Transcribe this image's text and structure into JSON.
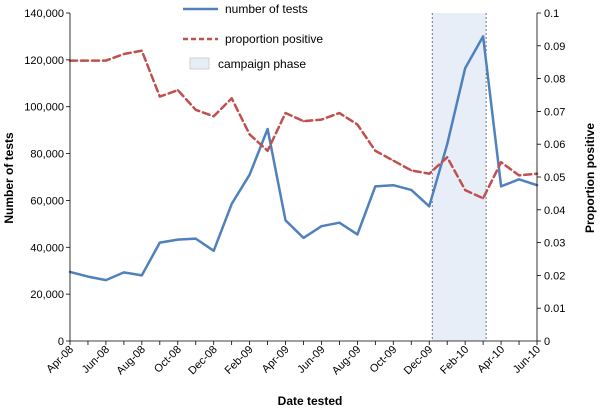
{
  "chart_data": {
    "type": "line",
    "xlabel": "Date tested",
    "ylabel_left": "Number of tests",
    "ylabel_right": "Proportion positive",
    "x": [
      "Apr-08",
      "May-08",
      "Jun-08",
      "Jul-08",
      "Aug-08",
      "Sep-08",
      "Oct-08",
      "Nov-08",
      "Dec-08",
      "Jan-09",
      "Feb-09",
      "Mar-09",
      "Apr-09",
      "May-09",
      "Jun-09",
      "Jul-09",
      "Aug-09",
      "Sep-09",
      "Oct-09",
      "Nov-09",
      "Dec-09",
      "Jan-10",
      "Feb-10",
      "Mar-10",
      "Apr-10",
      "May-10",
      "Jun-10"
    ],
    "x_tick_labels": [
      "Apr-08",
      "Jun-08",
      "Aug-08",
      "Oct-08",
      "Dec-08",
      "Feb-09",
      "Apr-09",
      "Jun-09",
      "Aug-09",
      "Oct-09",
      "Dec-09",
      "Feb-10",
      "Apr-10",
      "Jun-10"
    ],
    "y_left_ticks": [
      "0",
      "20,000",
      "40,000",
      "60,000",
      "80,000",
      "100,000",
      "120,000",
      "140,000"
    ],
    "y_right_ticks": [
      "0",
      "0.01",
      "0.02",
      "0.03",
      "0.04",
      "0.05",
      "0.06",
      "0.07",
      "0.08",
      "0.09",
      "0.1"
    ],
    "ylim_left": [
      0,
      140000
    ],
    "ylim_right": [
      0,
      0.1
    ],
    "series": [
      {
        "name": "number of tests",
        "axis": "left",
        "color": "#4f81bd",
        "style": "solid",
        "values": [
          29500,
          27500,
          26000,
          29300,
          28000,
          42000,
          43300,
          43700,
          38500,
          58500,
          71000,
          90500,
          51500,
          44000,
          49000,
          50500,
          45500,
          66000,
          66500,
          64500,
          57500,
          84000,
          116500,
          130000,
          66000,
          69000,
          66500
        ]
      },
      {
        "name": "proportion positive",
        "axis": "right",
        "color": "#c0504d",
        "style": "dashed",
        "values": [
          0.0855,
          0.0855,
          0.0855,
          0.0875,
          0.0885,
          0.0745,
          0.0765,
          0.0705,
          0.0685,
          0.074,
          0.063,
          0.058,
          0.0695,
          0.067,
          0.0675,
          0.0695,
          0.066,
          0.058,
          0.055,
          0.052,
          0.051,
          0.056,
          0.046,
          0.0435,
          0.0545,
          0.0505,
          0.051
        ]
      }
    ],
    "shaded_region": {
      "name": "campaign phase",
      "x_start": "Dec-09",
      "x_end": "Mar-10",
      "color": "#e8eef8"
    },
    "legend_position": "top-center",
    "grid": false
  }
}
